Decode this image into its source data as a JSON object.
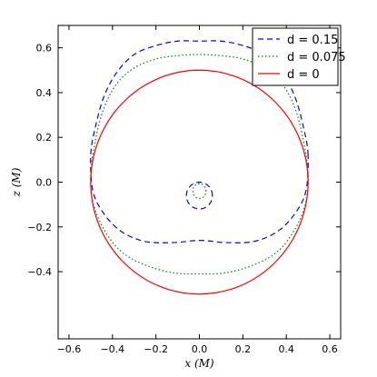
{
  "chart_data": {
    "type": "line",
    "title": "",
    "xlabel": "x (M)",
    "ylabel": "z (M)",
    "xlim": [
      -0.65,
      0.65
    ],
    "ylim": [
      -0.7,
      0.7
    ],
    "x_ticks": [
      -0.6,
      -0.4,
      -0.2,
      0.0,
      0.2,
      0.4,
      0.6
    ],
    "y_ticks": [
      -0.4,
      -0.2,
      0.0,
      0.2,
      0.4,
      0.6
    ],
    "x_tick_labels": [
      "−0.6",
      "−0.4",
      "−0.2",
      "0.0",
      "0.2",
      "0.4",
      "0.6"
    ],
    "y_tick_labels": [
      "−0.4",
      "−0.2",
      "0.0",
      "0.2",
      "0.4",
      "0.6"
    ],
    "grid": false,
    "legend_position": "top-right",
    "series": [
      {
        "name": "d = 0.15",
        "color": "#0000ff",
        "dash": "dashed",
        "outer": {
          "x": [
            0.5,
            0.48,
            0.44,
            0.38,
            0.3,
            0.2,
            0.1,
            0.0,
            -0.1,
            -0.2,
            -0.3,
            -0.38,
            -0.44,
            -0.48,
            -0.5,
            -0.49,
            -0.44,
            -0.36,
            -0.25,
            -0.12,
            0.0,
            0.12,
            0.25,
            0.36,
            0.44,
            0.49,
            0.5
          ],
          "y": [
            0.12,
            0.24,
            0.38,
            0.49,
            0.57,
            0.61,
            0.63,
            0.63,
            0.63,
            0.61,
            0.57,
            0.49,
            0.38,
            0.24,
            0.12,
            -0.04,
            -0.14,
            -0.22,
            -0.265,
            -0.27,
            -0.26,
            -0.27,
            -0.265,
            -0.22,
            -0.14,
            -0.04,
            0.12
          ]
        },
        "inner": {
          "x": [
            0.06,
            0.052,
            0.03,
            0.0,
            -0.03,
            -0.052,
            -0.06,
            -0.052,
            -0.03,
            0.0,
            0.03,
            0.052,
            0.06
          ],
          "y": [
            -0.06,
            -0.03,
            -0.008,
            0.0,
            -0.008,
            -0.03,
            -0.06,
            -0.09,
            -0.112,
            -0.12,
            -0.112,
            -0.09,
            -0.06
          ]
        }
      },
      {
        "name": "d = 0.075",
        "color": "#008000",
        "dash": "dotted",
        "outer": {
          "x": [
            0.5,
            0.48,
            0.44,
            0.38,
            0.3,
            0.2,
            0.1,
            0.0,
            -0.1,
            -0.2,
            -0.3,
            -0.38,
            -0.44,
            -0.48,
            -0.5,
            -0.49,
            -0.44,
            -0.36,
            -0.25,
            -0.12,
            0.0,
            0.12,
            0.25,
            0.36,
            0.44,
            0.49,
            0.5
          ],
          "y": [
            0.03,
            0.18,
            0.33,
            0.44,
            0.51,
            0.55,
            0.565,
            0.57,
            0.565,
            0.55,
            0.51,
            0.44,
            0.33,
            0.18,
            0.03,
            -0.09,
            -0.21,
            -0.31,
            -0.37,
            -0.405,
            -0.41,
            -0.405,
            -0.37,
            -0.31,
            -0.21,
            -0.09,
            0.03
          ]
        },
        "inner": {
          "x": [
            0.03,
            0.026,
            0.015,
            0.0,
            -0.015,
            -0.026,
            -0.03,
            -0.026,
            -0.015,
            0.0,
            0.015,
            0.026,
            0.03
          ],
          "y": [
            -0.04,
            -0.023,
            -0.011,
            -0.007,
            -0.011,
            -0.023,
            -0.04,
            -0.057,
            -0.069,
            -0.073,
            -0.069,
            -0.057,
            -0.04
          ]
        }
      },
      {
        "name": "d = 0",
        "color": "#ff0000",
        "dash": "solid",
        "circle": {
          "cx": 0.0,
          "cy": 0.0,
          "r": 0.5
        }
      }
    ]
  }
}
